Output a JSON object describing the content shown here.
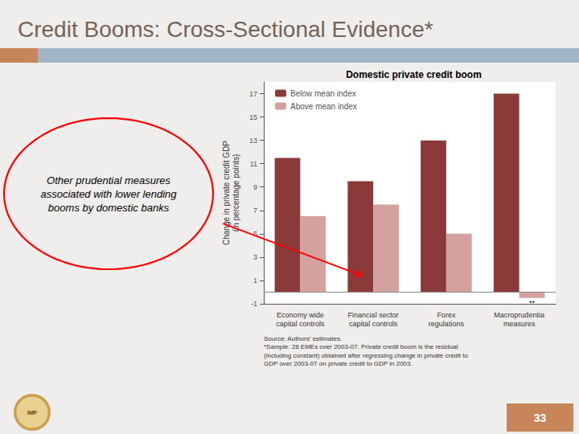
{
  "title": "Credit Booms: Cross-Sectional Evidence*",
  "annotations": [
    "Other prudential measures\nassociated with lower lending\nbooms by domestic banks",
    "Source: Authors' estimates.\n*Sample: 28 EMEs over 2003-07. Private credit boom is the residual\n(including constant) obtained after regressing change in private credit to\nGDP over 2003-07 on private credit to GDP in 2003.",
    "33",
    "IMF"
  ],
  "chart_data": {
    "type": "bar",
    "title": "Domestic private credit boom",
    "categories": [
      "Economy wide\ncapital controls",
      "Financial sector\ncapital controls",
      "Forex\nregulations",
      "Macroprudentia\nmeasures"
    ],
    "series": [
      {
        "name": "Below mean index",
        "color": "#8b3a3a",
        "values": [
          11.5,
          9.5,
          13.0,
          17.0
        ]
      },
      {
        "name": "Above mean index",
        "color": "#d4a0a0",
        "values": [
          6.5,
          7.5,
          5.0,
          -0.5
        ]
      }
    ],
    "ylabel": "Change in private credit GDP\n(in percentage points)",
    "ylim": [
      -1,
      18
    ],
    "yticks": [
      -1,
      1,
      3,
      5,
      7,
      9,
      11,
      13,
      15,
      17
    ],
    "grid": false,
    "legend": "upper left",
    "annotations": [
      "**"
    ]
  }
}
